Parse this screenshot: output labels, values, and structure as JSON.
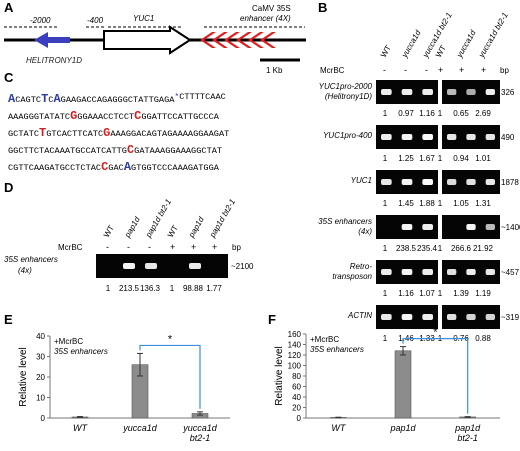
{
  "panels": {
    "A": "A",
    "B": "B",
    "C": "C",
    "D": "D",
    "E": "E",
    "F": "F"
  },
  "panelA": {
    "left_pos": "-2000",
    "mid_pos": "-400",
    "gene": "YUC1",
    "enhancer_line1": "CaMV 35S",
    "enhancer_line2": "enhancer (4X)",
    "helitron": "HELITRONY1D",
    "scale": "1 Kb",
    "colors": {
      "helitron": "#3b3fbd",
      "enhancer": "#e01f1f"
    }
  },
  "panelB": {
    "genotypes": [
      "WT",
      "yucca1d",
      "yucca1d bt2-1"
    ],
    "mcrbc_label": "McrBC",
    "mcrbc_left": [
      "-",
      "-",
      "-"
    ],
    "mcrbc_right": [
      "+",
      "+",
      "+"
    ],
    "bp_label": "bp",
    "rows": [
      {
        "label": "YUC1pro-2000 (Helitrony1D)",
        "left": [
          "1",
          "0.97",
          "1.16"
        ],
        "right": [
          "1",
          "0.65",
          "2.69"
        ],
        "bp": "326"
      },
      {
        "label": "YUC1pro-400",
        "left": [
          "1",
          "1.25",
          "1.67"
        ],
        "right": [
          "1",
          "0.94",
          "1.01"
        ],
        "bp": "490"
      },
      {
        "label": "YUC1",
        "left": [
          "1",
          "1.45",
          "1.88"
        ],
        "right": [
          "1",
          "1.05",
          "1.31"
        ],
        "bp": "1878"
      },
      {
        "label": "35S enhancers (4x)",
        "left": [
          "1",
          "238.5",
          "235.4"
        ],
        "right": [
          "1",
          "266.6",
          "21.92"
        ],
        "bp": "~1400"
      },
      {
        "label": "Retro-transposon",
        "left": [
          "1",
          "1.16",
          "1.07"
        ],
        "right": [
          "1",
          "1.39",
          "1.19"
        ],
        "bp": "~457"
      },
      {
        "label": "ACTIN",
        "left": [
          "1",
          "1.46",
          "1.33"
        ],
        "right": [
          "1",
          "0.76",
          "0.88"
        ],
        "bp": "~319"
      }
    ]
  },
  "panelC": {
    "lines": [
      "ACAGTCTCAGAAGACCAGAGGGCTATTGAGA*CTTTTCAAC",
      "AAAGGGTATATCGGGAAACCTCCTCGGATTCCATTGCCCA",
      "GCTATCTGTCACTTCATCGAAAGGACAGTAGAAAAGGAAGAT",
      "GGCTTCTACAAATGCCATCATTGCGATAAAGGAAAGGCTAT",
      "CGTTCAAGATGCCTCTACCGACAGTGGTCCCAAAGATGGA"
    ]
  },
  "panelD": {
    "genotypes": [
      "WT",
      "pap1d",
      "pap1d bt2-1"
    ],
    "mcrbc_label": "McrBC",
    "mcrbc_left": [
      "-",
      "-",
      "-"
    ],
    "mcrbc_right": [
      "+",
      "+",
      "+"
    ],
    "row_label": "35S enhancers (4x)",
    "values": [
      "1",
      "213.5",
      "136.3",
      "1",
      "98.88",
      "1.77"
    ],
    "bp_label": "bp",
    "bp": "~2100"
  },
  "panelE": {
    "ylabel": "Relative level",
    "legend1": "+McrBC",
    "legend2": "35S enhancers",
    "star": "*",
    "y_ticks": [
      "0",
      "10",
      "20",
      "30",
      "40"
    ],
    "xlabels": [
      "WT",
      "yucca1d",
      "yucca1d bt2-1"
    ]
  },
  "panelF": {
    "ylabel": "Relative level",
    "legend1": "+McrBC",
    "legend2": "35S enhancers",
    "star": "*",
    "y_ticks": [
      "0",
      "20",
      "40",
      "60",
      "80",
      "100",
      "120",
      "140",
      "160"
    ],
    "xlabels": [
      "WT",
      "pap1d",
      "pap1d bt2-1"
    ]
  },
  "chart_data": [
    {
      "type": "bar",
      "categories": [
        "WT",
        "yucca1d",
        "yucca1d bt2-1"
      ],
      "values": [
        0.5,
        26,
        2.2
      ],
      "errors": [
        0.2,
        5.5,
        0.8
      ],
      "ylabel": "Relative level",
      "ylim": [
        0,
        40
      ],
      "bar_color": "#8c8c8c",
      "bracket_color": "#3a8fd8"
    },
    {
      "type": "bar",
      "categories": [
        "WT",
        "pap1d",
        "pap1d bt2-1"
      ],
      "values": [
        1,
        128,
        2
      ],
      "errors": [
        0.5,
        8,
        0.6
      ],
      "ylabel": "Relative level",
      "ylim": [
        0,
        160
      ],
      "bar_color": "#8c8c8c",
      "bracket_color": "#3a8fd8"
    }
  ]
}
